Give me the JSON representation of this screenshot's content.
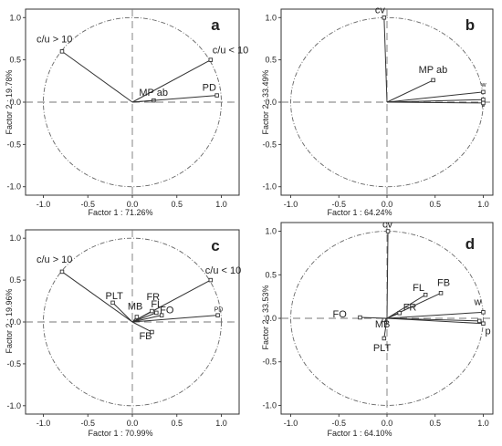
{
  "chart_data": [
    {
      "type": "scatter",
      "panel": "a",
      "xlabel": "Factor 1 : 71.26%",
      "ylabel": "Factor 2 : 19.78%",
      "xlim": [
        -1.2,
        1.2
      ],
      "ylim": [
        -1.1,
        1.1
      ],
      "xticks": [
        "-1.0",
        "-0.5",
        "0.0",
        "0.5",
        "1.0"
      ],
      "yticks": [
        "1.0",
        "0.5",
        "0.0",
        "-0.5",
        "-1.0"
      ],
      "points": [
        {
          "label": "c/u > 10",
          "x": -0.79,
          "y": 0.6
        },
        {
          "label": "c/u < 10",
          "x": 0.88,
          "y": 0.5
        },
        {
          "label": "MP ab",
          "x": 0.24,
          "y": 0.02
        },
        {
          "label": "PD",
          "x": 0.95,
          "y": 0.08
        }
      ]
    },
    {
      "type": "scatter",
      "panel": "b",
      "xlabel": "Factor 1 : 64.24%",
      "ylabel": "Factor 2 : 33.49%",
      "xlim": [
        -1.1,
        1.1
      ],
      "ylim": [
        -1.1,
        1.1
      ],
      "xticks": [
        "-1.0",
        "-0.5",
        "0.0",
        "0.5",
        "1.0"
      ],
      "yticks": [
        "1.0",
        "0.5",
        "0.0",
        "-0.5",
        "-1.0"
      ],
      "points": [
        {
          "label": "cv",
          "x": -0.03,
          "y": 1.0
        },
        {
          "label": "MP ab",
          "x": 0.48,
          "y": 0.26
        },
        {
          "label": "w",
          "x": 1.0,
          "y": 0.12
        },
        {
          "label": "p",
          "x": 1.0,
          "y": 0.03
        },
        {
          "label": "",
          "x": 1.0,
          "y": -0.01
        }
      ]
    },
    {
      "type": "scatter",
      "panel": "c",
      "xlabel": "Factor 1 : 70.99%",
      "ylabel": "Factor 2 : 19.96%",
      "xlim": [
        -1.2,
        1.2
      ],
      "ylim": [
        -1.1,
        1.1
      ],
      "xticks": [
        "-1.0",
        "-0.5",
        "0.0",
        "0.5",
        "1.0"
      ],
      "yticks": [
        "1.0",
        "0.5",
        "0.0",
        "-0.5",
        "-1.0"
      ],
      "points": [
        {
          "label": "c/u > 10",
          "x": -0.79,
          "y": 0.6
        },
        {
          "label": "c/u < 10",
          "x": 0.88,
          "y": 0.5
        },
        {
          "label": "PLT",
          "x": -0.22,
          "y": 0.23
        },
        {
          "label": "MB",
          "x": 0.05,
          "y": 0.06
        },
        {
          "label": "FR",
          "x": 0.22,
          "y": 0.13
        },
        {
          "label": "FO",
          "x": 0.33,
          "y": 0.08
        },
        {
          "label": "FL",
          "x": 0.27,
          "y": 0.11
        },
        {
          "label": "FB",
          "x": 0.22,
          "y": -0.12
        },
        {
          "label": "PD",
          "x": 0.96,
          "y": 0.08
        }
      ]
    },
    {
      "type": "scatter",
      "panel": "d",
      "xlabel": "Factor 1 : 64.10%",
      "ylabel": "Factor 2 : 33.53%",
      "xlim": [
        -1.1,
        1.1
      ],
      "ylim": [
        -1.1,
        1.1
      ],
      "xticks": [
        "-1.0",
        "-0.5",
        "0.0",
        "0.5",
        "1.0"
      ],
      "yticks": [
        "1.0",
        "0.5",
        "0.0",
        "-0.5",
        "-1.0"
      ],
      "points": [
        {
          "label": "cv",
          "x": 0.01,
          "y": 1.0
        },
        {
          "label": "FL",
          "x": 0.4,
          "y": 0.27
        },
        {
          "label": "FB",
          "x": 0.56,
          "y": 0.29
        },
        {
          "label": "FR",
          "x": 0.13,
          "y": 0.06
        },
        {
          "label": "FO",
          "x": -0.28,
          "y": 0.01
        },
        {
          "label": "MB",
          "x": -0.03,
          "y": -0.02
        },
        {
          "label": "PLT",
          "x": -0.03,
          "y": -0.23
        },
        {
          "label": "w",
          "x": 1.0,
          "y": 0.07
        },
        {
          "label": "p",
          "x": 1.0,
          "y": -0.06
        },
        {
          "label": "",
          "x": 0.96,
          "y": -0.03
        }
      ]
    }
  ],
  "panel_letters": [
    "a",
    "b",
    "c",
    "d"
  ]
}
